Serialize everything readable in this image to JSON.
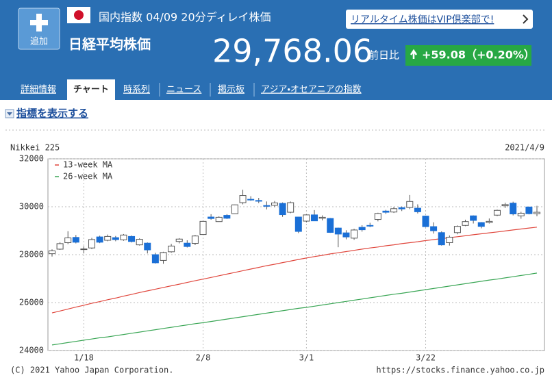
{
  "header": {
    "index_label": "国内指数 04/09 20分ディレイ株価",
    "vip_link": "リアルタイム株価はVIP倶楽部で!",
    "add_button": "追加",
    "name": "日経平均株価",
    "price": "29,768.06",
    "change_label": "前日比",
    "change": "+59.08（+0.20%）"
  },
  "tabs": [
    "詳細情報",
    "チャート",
    "時系列",
    "ニュース",
    "掲示板",
    "アジア・オセアニアの指数"
  ],
  "indicator_link": "指標を表示する",
  "chart_data": {
    "type": "candlestick",
    "title": "Nikkei 225",
    "date_label": "2021/4/9",
    "copyright": "(C) 2021 Yahoo Japan Corporation.",
    "source_url": "https://stocks.finance.yahoo.co.jp",
    "categories": [
      null,
      null,
      null,
      null,
      "1/18",
      null,
      null,
      null,
      null,
      null,
      null,
      null,
      null,
      null,
      null,
      null,
      null,
      null,
      null,
      "2/8",
      null,
      null,
      null,
      null,
      null,
      null,
      null,
      null,
      null,
      null,
      null,
      null,
      "3/1",
      null,
      null,
      null,
      null,
      null,
      null,
      null,
      null,
      null,
      null,
      null,
      null,
      null,
      null,
      "3/22",
      null,
      null,
      null,
      null,
      null,
      null,
      null,
      null,
      null,
      null,
      null,
      null,
      null,
      null
    ],
    "open": [
      28040,
      28230,
      28500,
      28720,
      28240,
      28280,
      28740,
      28600,
      28710,
      28620,
      28760,
      28410,
      28480,
      28000,
      27760,
      28120,
      28550,
      28480,
      28470,
      28840,
      29570,
      29380,
      29640,
      29710,
      30170,
      30310,
      30260,
      30050,
      30060,
      30140,
      29770,
      29570,
      29400,
      29660,
      29520,
      29510,
      29110,
      28910,
      28690,
      29140,
      29220,
      29470,
      29820,
      29780,
      29960,
      29970,
      29940,
      29610,
      29170,
      28920,
      28500,
      28920,
      29220,
      29620,
      29340,
      29340,
      29650,
      30040,
      30150,
      29620,
      29990,
      29710
    ],
    "high": [
      28220,
      28520,
      28980,
      28820,
      28350,
      28700,
      28790,
      28840,
      28780,
      28860,
      28800,
      28680,
      28510,
      28080,
      28120,
      28450,
      28690,
      28600,
      28820,
      29420,
      29690,
      29600,
      29690,
      30090,
      30710,
      30440,
      30370,
      30220,
      30240,
      30180,
      30220,
      29580,
      29680,
      29860,
      29640,
      29530,
      29130,
      29020,
      29080,
      29230,
      29330,
      29750,
      29870,
      30000,
      30010,
      30490,
      30100,
      29630,
      29350,
      28970,
      28800,
      29220,
      29460,
      29640,
      29360,
      29510,
      29880,
      30170,
      30210,
      29790,
      29990,
      30040
    ],
    "low": [
      27920,
      28200,
      28440,
      28470,
      28050,
      28230,
      28480,
      28560,
      28560,
      28580,
      28510,
      28380,
      28050,
      27630,
      27620,
      28080,
      28470,
      28300,
      28400,
      28840,
      29460,
      29370,
      29490,
      29700,
      30100,
      30250,
      30150,
      29890,
      29980,
      29580,
      29730,
      28900,
      29350,
      29400,
      29430,
      28910,
      28310,
      28640,
      28620,
      28960,
      29150,
      29390,
      29700,
      29740,
      29820,
      29900,
      29720,
      29150,
      28880,
      28380,
      28380,
      28850,
      29190,
      29300,
      29100,
      29300,
      29610,
      29950,
      29640,
      29500,
      29680,
      29600
    ],
    "close": [
      28160,
      28460,
      28700,
      28520,
      28240,
      28630,
      28520,
      28760,
      28630,
      28820,
      28550,
      28640,
      28200,
      27660,
      28090,
      28360,
      28650,
      28340,
      28780,
      29390,
      29510,
      29560,
      29520,
      30080,
      30470,
      30290,
      30240,
      30020,
      30160,
      29670,
      30170,
      28970,
      29660,
      29410,
      29560,
      28930,
      28860,
      28740,
      29030,
      29040,
      29210,
      29720,
      29770,
      29920,
      29910,
      30220,
      29790,
      29170,
      29000,
      28410,
      28730,
      29180,
      29380,
      29430,
      29180,
      29390,
      29850,
      30090,
      29700,
      29730,
      29710,
      29770
    ],
    "up_color": "#ffffff",
    "down_color": "#1a6fd6",
    "series": [
      {
        "name": "13-week MA",
        "color": "#e0463c",
        "values": [
          25570,
          25650,
          25730,
          25810,
          25890,
          25970,
          26040,
          26120,
          26190,
          26270,
          26340,
          26420,
          26490,
          26560,
          26630,
          26700,
          26770,
          26840,
          26910,
          26980,
          27050,
          27120,
          27190,
          27260,
          27330,
          27400,
          27470,
          27540,
          27600,
          27670,
          27730,
          27800,
          27860,
          27920,
          27970,
          28030,
          28080,
          28130,
          28180,
          28230,
          28280,
          28320,
          28370,
          28410,
          28460,
          28500,
          28540,
          28590,
          28630,
          28670,
          28710,
          28750,
          28790,
          28830,
          28870,
          28910,
          28950,
          28990,
          29030,
          29070,
          29110,
          29150
        ]
      },
      {
        "name": "26-week MA",
        "color": "#3aa655",
        "values": [
          24230,
          24280,
          24330,
          24380,
          24430,
          24480,
          24530,
          24570,
          24620,
          24670,
          24720,
          24770,
          24820,
          24870,
          24920,
          24970,
          25020,
          25070,
          25120,
          25160,
          25210,
          25260,
          25310,
          25360,
          25410,
          25460,
          25510,
          25560,
          25610,
          25660,
          25710,
          25760,
          25800,
          25850,
          25900,
          25950,
          26000,
          26050,
          26100,
          26150,
          26200,
          26250,
          26300,
          26350,
          26390,
          26440,
          26490,
          26540,
          26590,
          26640,
          26690,
          26740,
          26790,
          26840,
          26890,
          26940,
          26980,
          27030,
          27080,
          27130,
          27180,
          27230
        ]
      }
    ],
    "ylim": [
      24000,
      32000
    ],
    "yticks": [
      24000,
      26000,
      28000,
      30000,
      32000
    ],
    "grid": true
  }
}
